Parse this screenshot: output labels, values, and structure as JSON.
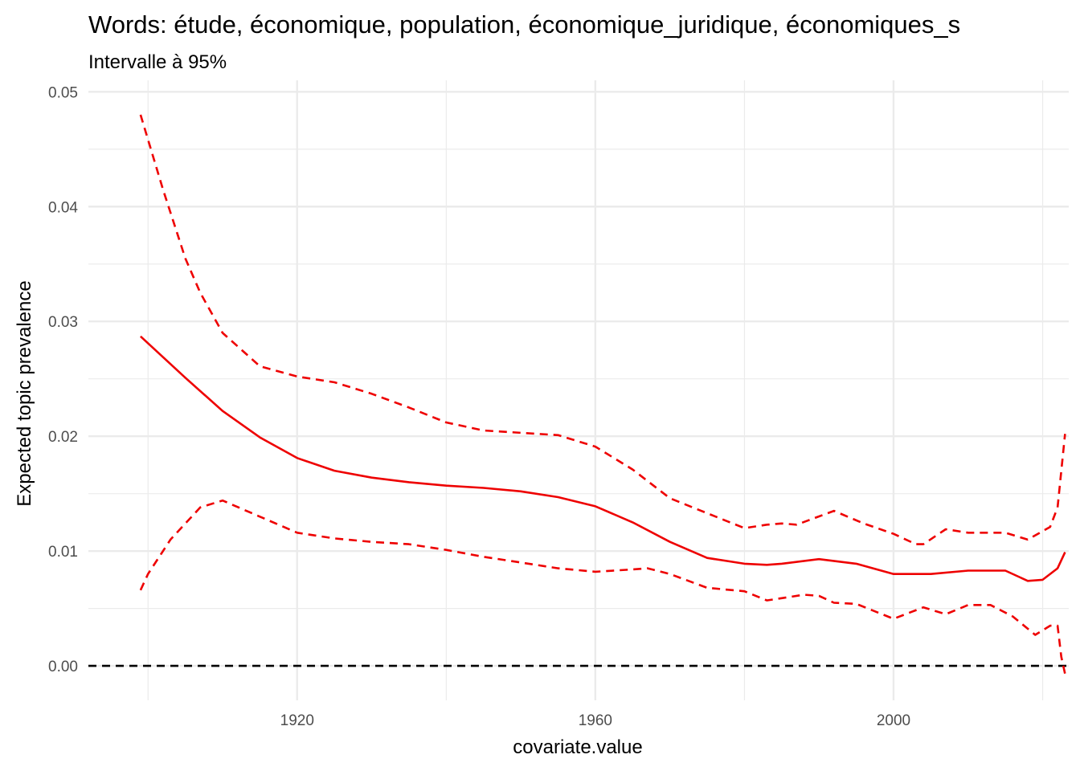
{
  "chart_data": {
    "type": "line",
    "title": "Words: étude, économique, population, économique_juridique, économiques_s",
    "subtitle": "Intervalle à 95%",
    "xlabel": "covariate.value",
    "ylabel": "Expected topic prevalence",
    "xlim": [
      1892,
      2023.5
    ],
    "ylim": [
      -0.003,
      0.051
    ],
    "x_ticks": [
      1920,
      1960,
      2000
    ],
    "x_tick_labels": [
      "1920",
      "1960",
      "2000"
    ],
    "x_minor_ticks": [
      1900,
      1940,
      1980,
      2020
    ],
    "y_ticks": [
      0,
      0.01,
      0.02,
      0.03,
      0.04,
      0.05
    ],
    "y_tick_labels": [
      "0.00",
      "0.01",
      "0.02",
      "0.03",
      "0.04",
      "0.05"
    ],
    "y_minor_ticks": [
      0.005,
      0.015,
      0.025,
      0.035,
      0.045
    ],
    "grid": true,
    "colors": {
      "series": "#ee0000",
      "reference": "#000000",
      "grid": "#ebebeb"
    },
    "reference_line": {
      "y": 0,
      "style": "dashed"
    },
    "series": [
      {
        "role": "estimate",
        "style": "solid",
        "x": [
          1899,
          1905,
          1910,
          1915,
          1920,
          1925,
          1930,
          1935,
          1940,
          1945,
          1950,
          1955,
          1960,
          1965,
          1970,
          1975,
          1980,
          1983,
          1985,
          1990,
          1995,
          2000,
          2005,
          2010,
          2015,
          2018,
          2020,
          2022,
          2023
        ],
        "y": [
          0.0287,
          0.0251,
          0.0222,
          0.0199,
          0.0181,
          0.017,
          0.0164,
          0.016,
          0.0157,
          0.0155,
          0.0152,
          0.0147,
          0.0139,
          0.0125,
          0.0108,
          0.0094,
          0.0089,
          0.0088,
          0.0089,
          0.0093,
          0.0089,
          0.008,
          0.008,
          0.0083,
          0.0083,
          0.0074,
          0.0075,
          0.0085,
          0.0099
        ]
      },
      {
        "role": "upper",
        "style": "dashed",
        "x": [
          1899,
          1902,
          1905,
          1907,
          1910,
          1915,
          1920,
          1925,
          1930,
          1935,
          1940,
          1945,
          1950,
          1955,
          1960,
          1965,
          1970,
          1975,
          1980,
          1983,
          1985,
          1987,
          1992,
          1996,
          2000,
          2003,
          2004,
          2007,
          2010,
          2015,
          2018,
          2021,
          2022,
          2023
        ],
        "y": [
          0.048,
          0.0415,
          0.0355,
          0.0325,
          0.029,
          0.0261,
          0.0252,
          0.0247,
          0.0237,
          0.0225,
          0.0212,
          0.0205,
          0.0203,
          0.0201,
          0.0191,
          0.0171,
          0.0146,
          0.0133,
          0.012,
          0.0123,
          0.0124,
          0.0123,
          0.0135,
          0.0124,
          0.0115,
          0.0106,
          0.0106,
          0.0119,
          0.0116,
          0.0116,
          0.011,
          0.0121,
          0.0138,
          0.0202
        ]
      },
      {
        "role": "lower",
        "style": "dashed",
        "x": [
          1899,
          1900,
          1903,
          1907,
          1910,
          1915,
          1920,
          1925,
          1930,
          1935,
          1940,
          1945,
          1950,
          1955,
          1960,
          1965,
          1967,
          1970,
          1975,
          1980,
          1983,
          1985,
          1988,
          1990,
          1992,
          1995,
          2000,
          2004,
          2007,
          2010,
          2013,
          2016,
          2019,
          2021,
          2022,
          2022.5,
          2023
        ],
        "y": [
          0.0066,
          0.008,
          0.011,
          0.0138,
          0.0144,
          0.013,
          0.0116,
          0.0111,
          0.0108,
          0.0106,
          0.0101,
          0.0095,
          0.009,
          0.0085,
          0.0082,
          0.0084,
          0.0085,
          0.008,
          0.0068,
          0.0065,
          0.0057,
          0.0059,
          0.0062,
          0.0061,
          0.0055,
          0.0054,
          0.0041,
          0.0051,
          0.0045,
          0.0053,
          0.0053,
          0.0043,
          0.0027,
          0.0035,
          0.0035,
          0.0008,
          -0.0007
        ]
      }
    ]
  }
}
